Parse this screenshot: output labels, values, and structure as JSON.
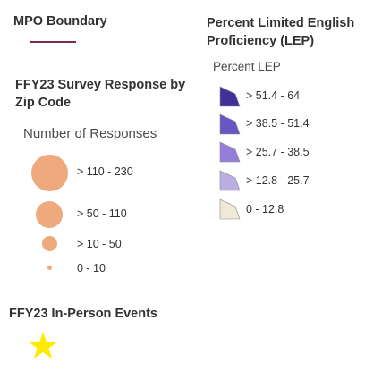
{
  "mpo_boundary": {
    "title": "MPO Boundary",
    "line_color": "#7a2a5a"
  },
  "survey_response": {
    "title": "FFY23 Survey Response by Zip Code",
    "field_label": "Number of Responses",
    "color": "#eea97c",
    "classes": [
      {
        "label": "> 110 - 230"
      },
      {
        "label": "> 50 - 110"
      },
      {
        "label": "> 10 - 50"
      },
      {
        "label": "0 - 10"
      }
    ]
  },
  "events": {
    "title": "FFY23 In-Person Events",
    "symbol": "star-icon",
    "color": "#ffeb00"
  },
  "lep": {
    "title": "Percent Limited English Proficiency (LEP)",
    "field_label": "Percent LEP",
    "classes": [
      {
        "label": "> 51.4 - 64",
        "color": "#3f3197"
      },
      {
        "label": "> 38.5 - 51.4",
        "color": "#6a56c2"
      },
      {
        "label": "> 25.7 - 38.5",
        "color": "#957ed9"
      },
      {
        "label": "> 12.8 - 25.7",
        "color": "#bcaee2"
      },
      {
        "label": "0 - 12.8",
        "color": "#efe9d8"
      }
    ]
  }
}
